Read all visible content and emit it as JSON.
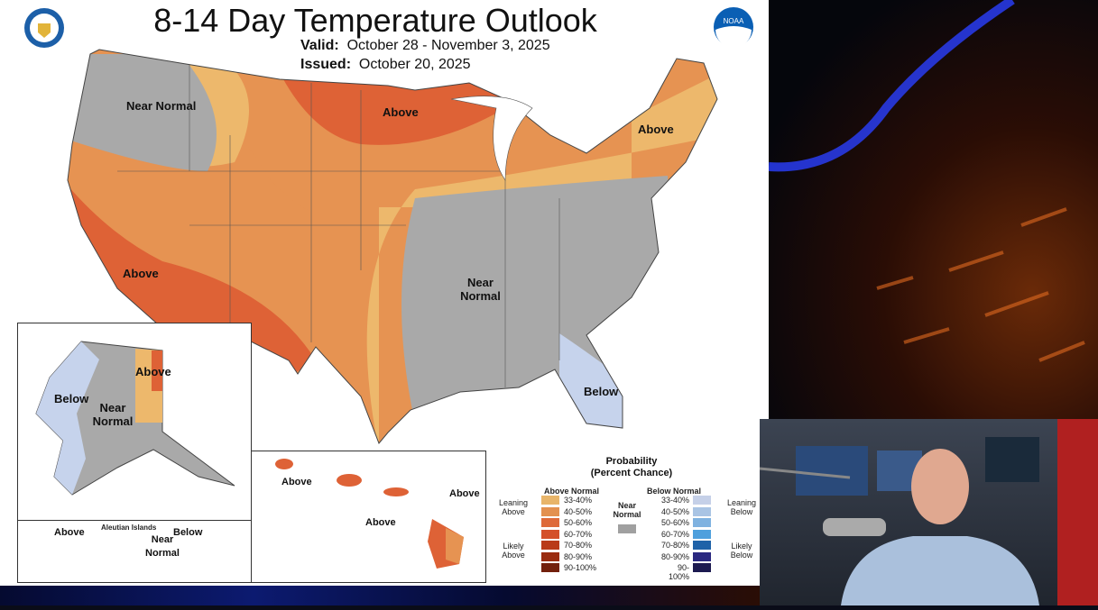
{
  "header": {
    "title": "8-14 Day Temperature Outlook",
    "valid_label": "Valid:",
    "valid": "October 28 - November 3, 2025",
    "issued_label": "Issued:",
    "issued": "October 20, 2025"
  },
  "logos": {
    "left": "Department of Commerce seal",
    "right": "NOAA"
  },
  "map_labels": {
    "nw": "Near Normal",
    "north": "Above",
    "northeast": "Above",
    "southwest": "Above",
    "east": "Near Normal",
    "florida": "Below"
  },
  "alaska": {
    "east": "Above",
    "west": "Below",
    "center": "Near Normal"
  },
  "aleutians": {
    "title": "Aleutian Islands",
    "west": "Above",
    "center": "Near Normal",
    "east": "Below"
  },
  "hawaii": {
    "west": "Above",
    "center": "Above",
    "east": "Above"
  },
  "legend": {
    "title": "Probability",
    "subtitle": "(Percent Chance)",
    "above_header": "Above Normal",
    "below_header": "Below Normal",
    "near": "Near Normal",
    "leaning_above": "Leaning Above",
    "likely_above": "Likely Above",
    "leaning_below": "Leaning Below",
    "likely_below": "Likely Below",
    "bins": [
      "33-40%",
      "40-50%",
      "50-60%",
      "60-70%",
      "70-80%",
      "80-90%",
      "90-100%"
    ],
    "above_colors": [
      "#e8b56a",
      "#e39150",
      "#de6a3a",
      "#d4502a",
      "#b93a18",
      "#9a2c10",
      "#72200c"
    ],
    "below_colors": [
      "#c5d0e8",
      "#a9c4e4",
      "#7fb2e0",
      "#4fa0dd",
      "#1f62a8",
      "#2a2880",
      "#1c1a50"
    ],
    "near_color": "#a0a0a0"
  },
  "colors": {
    "near": "#a9a9a9",
    "lean33": "#edb86c",
    "lean40": "#e69352",
    "likely50": "#de6236",
    "below33": "#c6d3ec"
  }
}
